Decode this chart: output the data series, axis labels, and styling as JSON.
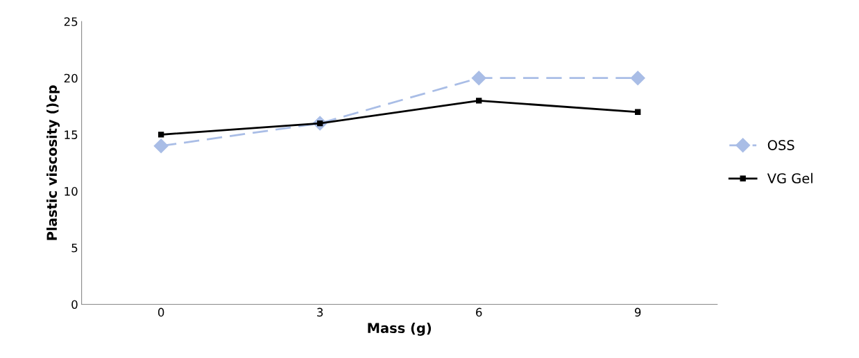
{
  "chart_data": {
    "type": "line",
    "xlabel": "Mass (g)",
    "ylabel": "Plastic viscosity ()cp",
    "categories": [
      "0",
      "3",
      "6",
      "9"
    ],
    "series": [
      {
        "name": "OSS",
        "color": "#a9bde6",
        "marker": "diamond",
        "line_style": "dashed",
        "values": [
          14,
          16,
          20,
          20
        ]
      },
      {
        "name": "VG Gel",
        "color": "#000000",
        "marker": "square",
        "line_style": "solid",
        "values": [
          15,
          16,
          18,
          17
        ]
      }
    ],
    "ylim": [
      0,
      25
    ],
    "yticks": [
      0,
      5,
      10,
      15,
      20,
      25
    ],
    "grid": false,
    "legend": "right"
  }
}
